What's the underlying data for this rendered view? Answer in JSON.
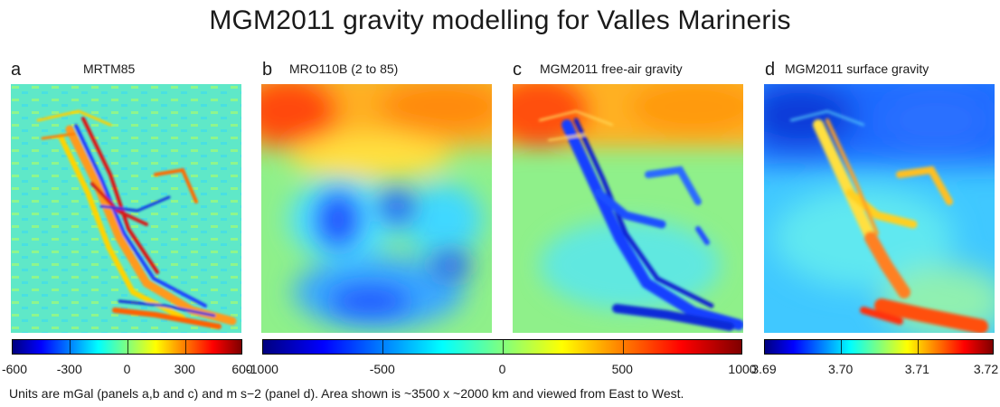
{
  "title": "MGM2011 gravity modelling for Valles Marineris",
  "panels": [
    {
      "letter": "a",
      "title": "MRTM85"
    },
    {
      "letter": "b",
      "title": "MRO110B (2 to 85)"
    },
    {
      "letter": "c",
      "title": "MGM2011 free-air gravity"
    },
    {
      "letter": "d",
      "title": "MGM2011 surface gravity"
    }
  ],
  "colorbars": [
    {
      "ticks": [
        "-600",
        "-300",
        "0",
        "300",
        "600"
      ],
      "values": [
        -600,
        -300,
        0,
        300,
        600
      ],
      "range": [
        -600,
        600
      ]
    },
    {
      "ticks": [
        "-1000",
        "-500",
        "0",
        "500",
        "1000"
      ],
      "values": [
        -1000,
        -500,
        0,
        500,
        1000
      ],
      "range": [
        -1000,
        1000
      ]
    },
    {
      "ticks": [
        "3.69",
        "3.70",
        "3.71",
        "3.72"
      ],
      "values": [
        3.69,
        3.7,
        3.71,
        3.72
      ],
      "range": [
        3.69,
        3.72
      ]
    }
  ],
  "colormap": [
    "#00007f",
    "#0000ff",
    "#007fff",
    "#00ffff",
    "#7fff7f",
    "#ffff00",
    "#ff7f00",
    "#ff0000",
    "#7f0000"
  ],
  "caption": "Units are mGal (panels a,b and c) and m s−2 (panel d).  Area shown is ~3500 x ~2000 km and viewed from East to West."
}
